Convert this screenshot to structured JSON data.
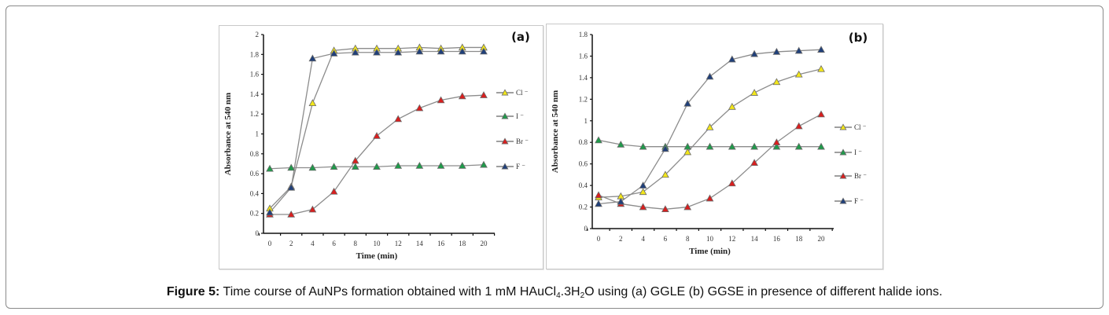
{
  "caption": {
    "label": "Figure 5:",
    "text_part1": " Time course of AuNPs formation obtained with 1 mM HAuCl",
    "sub1": "4",
    "text_part2": ".3H",
    "sub2": "2",
    "text_part3": "O using (a) GGLE (b) GGSE in presence of different halide ions."
  },
  "colors": {
    "Cl": "#f2e61a",
    "I": "#1f9a4a",
    "Br": "#d91e1e",
    "F": "#1f3f7a",
    "line": "#8c8c8c",
    "axis": "#111111"
  },
  "chart_data": [
    {
      "type": "line",
      "panel_label": "(a)",
      "title": "",
      "xlabel": "Time (min)",
      "ylabel": "Absorbance at 540 nm",
      "xlim": [
        0,
        20
      ],
      "ylim": [
        0,
        2
      ],
      "xticks": [
        0,
        2,
        4,
        6,
        8,
        10,
        12,
        14,
        16,
        18,
        20
      ],
      "yticks": [
        0,
        0.2,
        0.4,
        0.6,
        0.8,
        1,
        1.2,
        1.4,
        1.6,
        1.8,
        2
      ],
      "ytick_labels": [
        "0",
        "0.2",
        "0.4",
        "0.6",
        "0.8",
        "1",
        "1.2",
        "1.4",
        "1.6",
        "1.8",
        "2"
      ],
      "grid": false,
      "legend_position": "right",
      "x": [
        0,
        2,
        4,
        6,
        8,
        10,
        12,
        14,
        16,
        18,
        20
      ],
      "series": [
        {
          "name": "Cl",
          "legend": "Cl ⁻",
          "key": "Cl",
          "values": [
            0.25,
            0.47,
            1.31,
            1.84,
            1.86,
            1.86,
            1.86,
            1.87,
            1.86,
            1.87,
            1.87
          ]
        },
        {
          "name": "I",
          "legend": "I ⁻",
          "key": "I",
          "values": [
            0.65,
            0.66,
            0.66,
            0.67,
            0.67,
            0.67,
            0.68,
            0.68,
            0.68,
            0.68,
            0.69
          ]
        },
        {
          "name": "Br",
          "legend": "Br ⁻",
          "key": "Br",
          "values": [
            0.19,
            0.19,
            0.24,
            0.42,
            0.73,
            0.98,
            1.15,
            1.26,
            1.34,
            1.38,
            1.39
          ]
        },
        {
          "name": "F",
          "legend": "F ⁻",
          "key": "F",
          "values": [
            0.21,
            0.46,
            1.76,
            1.81,
            1.82,
            1.82,
            1.82,
            1.83,
            1.83,
            1.83,
            1.83
          ]
        }
      ]
    },
    {
      "type": "line",
      "panel_label": "(b)",
      "title": "",
      "xlabel": "Time (min)",
      "ylabel": "Absorbance at 540 nm",
      "xlim": [
        0,
        20
      ],
      "ylim": [
        0,
        1.8
      ],
      "xticks": [
        0,
        2,
        4,
        6,
        8,
        10,
        12,
        14,
        16,
        18,
        20
      ],
      "yticks": [
        0,
        0.2,
        0.4,
        0.6,
        0.8,
        1,
        1.2,
        1.4,
        1.6,
        1.8
      ],
      "ytick_labels": [
        "0",
        "0.2",
        "0.4",
        "0.6",
        "0.8",
        "1",
        "1.2",
        "1.4",
        "1.6",
        "1.8"
      ],
      "grid": false,
      "legend_position": "right",
      "x": [
        0,
        2,
        4,
        6,
        8,
        10,
        12,
        14,
        16,
        18,
        20
      ],
      "series": [
        {
          "name": "Cl",
          "legend": "Cl ⁻",
          "key": "Cl",
          "values": [
            0.29,
            0.3,
            0.34,
            0.5,
            0.71,
            0.94,
            1.13,
            1.26,
            1.36,
            1.43,
            1.48
          ]
        },
        {
          "name": "I",
          "legend": "I ⁻",
          "key": "I",
          "values": [
            0.82,
            0.78,
            0.76,
            0.76,
            0.76,
            0.76,
            0.76,
            0.76,
            0.76,
            0.76,
            0.76
          ]
        },
        {
          "name": "Br",
          "legend": "Br ⁻",
          "key": "Br",
          "values": [
            0.31,
            0.23,
            0.2,
            0.18,
            0.2,
            0.28,
            0.42,
            0.61,
            0.8,
            0.95,
            1.06
          ]
        },
        {
          "name": "F",
          "legend": "F ⁻",
          "key": "F",
          "values": [
            0.23,
            0.25,
            0.4,
            0.74,
            1.16,
            1.41,
            1.57,
            1.62,
            1.64,
            1.65,
            1.66
          ]
        }
      ]
    }
  ]
}
